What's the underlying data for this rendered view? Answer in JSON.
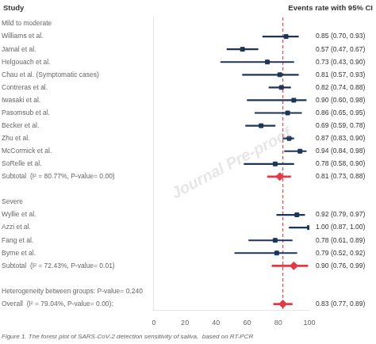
{
  "chart_data": {
    "type": "forest",
    "ylabel": "Study",
    "xlabel": "Events rate with 95% CI",
    "subtitle": "Figure 1. The forest plot of SARS-CoV-2 detection sensitivity of saliva,  based on RT-PCR",
    "categories": [
      "Mild to moderate",
      "Williams et al.",
      "Jamal et al.",
      "Helgouach et al.",
      "Chau et al. (Symptomatic cases)",
      "Contreras et al.",
      "Iwasaki et al.",
      "Pasomsub et al.",
      "Becker et al.",
      "Zhu et al.",
      "McCormick et al.",
      "SoRelle et al.",
      "Subtotal  (I² = 80.77%, P-value= 0.00)",
      null,
      "Severe",
      "Wyllie et al.",
      "Azzi et al.",
      "Fang et al.",
      "Byrne et al.",
      "Subtotal  (I² = 72.43%, P-value= 0.01)",
      null,
      "Heterogeneity between groups: P-value= 0.240",
      "Overall  (I² = 79.04%, P-value= 0.00):"
    ],
    "series": [
      {
        "marker": "square",
        "color": "#1d3557",
        "values": [
          null,
          85,
          57,
          73,
          81,
          82,
          90,
          86,
          69,
          87,
          94,
          78,
          null,
          null,
          null,
          92,
          100,
          78,
          79,
          null,
          null,
          null,
          null
        ],
        "lo": [
          null,
          70,
          47,
          43,
          57,
          74,
          60,
          65,
          59,
          83,
          84,
          58,
          null,
          null,
          null,
          79,
          87,
          61,
          52,
          null,
          null,
          null,
          null
        ],
        "hi": [
          null,
          93,
          67,
          90,
          93,
          88,
          98,
          95,
          78,
          90,
          98,
          90,
          null,
          null,
          null,
          97,
          100,
          89,
          92,
          null,
          null,
          null,
          null
        ],
        "value_labels": [
          null,
          "0.85 (0.70, 0.93)",
          "0.57 (0.47, 0.67)",
          "0.73 (0.43, 0.90)",
          "0.81 (0.57, 0.93)",
          "0.82 (0.74, 0.88)",
          "0.90 (0.60, 0.98)",
          "0.86 (0.65, 0.95)",
          "0.69 (0.59, 0.78)",
          "0.87 (0.83, 0.90)",
          "0.94 (0.84, 0.98)",
          "0.78 (0.58, 0.90)",
          null,
          null,
          null,
          "0.92 (0.79, 0.97)",
          "1.00 (0.87, 1.00)",
          "0.78 (0.61, 0.89)",
          "0.79 (0.52, 0.92)",
          null,
          null,
          null,
          null
        ]
      },
      {
        "marker": "diamond",
        "color": "#e63946",
        "values": [
          null,
          null,
          null,
          null,
          null,
          null,
          null,
          null,
          null,
          null,
          null,
          null,
          81,
          null,
          null,
          null,
          null,
          null,
          null,
          90,
          null,
          null,
          83
        ],
        "lo": [
          null,
          null,
          null,
          null,
          null,
          null,
          null,
          null,
          null,
          null,
          null,
          null,
          73,
          null,
          null,
          null,
          null,
          null,
          null,
          76,
          null,
          null,
          77
        ],
        "hi": [
          null,
          null,
          null,
          null,
          null,
          null,
          null,
          null,
          null,
          null,
          null,
          null,
          88,
          null,
          null,
          null,
          null,
          null,
          null,
          99,
          null,
          null,
          89
        ],
        "value_labels": [
          null,
          null,
          null,
          null,
          null,
          null,
          null,
          null,
          null,
          null,
          null,
          null,
          "0.81 (0.73, 0.88)",
          null,
          null,
          null,
          null,
          null,
          null,
          "0.90 (0.76, 0.99)",
          null,
          null,
          "0.83 (0.77, 0.89)"
        ]
      }
    ],
    "xlim": [
      0,
      100
    ],
    "xticks": [
      0,
      20,
      40,
      60,
      80,
      100
    ],
    "grid": false,
    "annotations": [
      {
        "type": "vline",
        "x": 83,
        "color": "#cc3333",
        "line_style": "dashed"
      },
      {
        "type": "text",
        "text": "Journal Pre-proof"
      }
    ]
  }
}
